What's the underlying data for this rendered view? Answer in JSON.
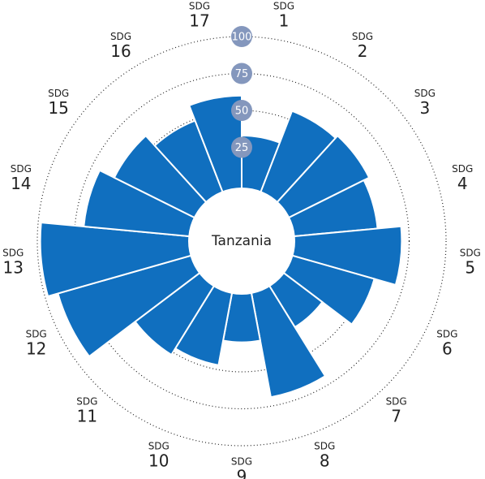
{
  "chart_data": {
    "type": "polar_bar",
    "title": "Tanzania",
    "category_prefix": "SDG",
    "categories": [
      "1",
      "2",
      "3",
      "4",
      "5",
      "6",
      "7",
      "8",
      "9",
      "10",
      "11",
      "12",
      "13",
      "14",
      "15",
      "16",
      "17"
    ],
    "values": [
      33,
      56,
      58,
      54,
      70,
      55,
      30,
      69,
      30,
      47,
      52,
      91,
      98,
      69,
      58,
      49,
      60
    ],
    "color": "#106fbf",
    "ylim": [
      0,
      100
    ],
    "yticks": [
      25,
      50,
      75,
      100
    ],
    "grid": true,
    "tick_badge_color": "#8497bd"
  }
}
